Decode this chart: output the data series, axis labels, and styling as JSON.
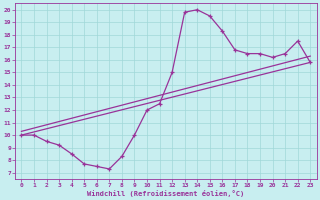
{
  "xlabel": "Windchill (Refroidissement éolien,°C)",
  "bg_color": "#c8eef0",
  "line_color": "#993399",
  "grid_color": "#a0d8d8",
  "xlim": [
    -0.5,
    23.5
  ],
  "ylim": [
    6.5,
    20.5
  ],
  "xticks": [
    0,
    1,
    2,
    3,
    4,
    5,
    6,
    7,
    8,
    9,
    10,
    11,
    12,
    13,
    14,
    15,
    16,
    17,
    18,
    19,
    20,
    21,
    22,
    23
  ],
  "yticks": [
    7,
    8,
    9,
    10,
    11,
    12,
    13,
    14,
    15,
    16,
    17,
    18,
    19,
    20
  ],
  "curve_x": [
    0,
    1,
    2,
    3,
    4,
    5,
    6,
    7,
    8,
    9,
    10,
    11,
    12,
    13,
    14,
    15,
    16,
    17,
    18,
    19,
    20,
    21,
    22,
    23
  ],
  "curve_y": [
    10.0,
    10.0,
    9.5,
    9.2,
    8.5,
    7.7,
    7.5,
    7.3,
    8.3,
    10.0,
    12.0,
    12.5,
    15.0,
    19.8,
    20.0,
    19.5,
    18.3,
    16.8,
    16.5,
    16.5,
    16.2,
    16.5,
    17.5,
    15.8
  ],
  "line1_x": [
    0,
    23
  ],
  "line1_y": [
    10.0,
    15.8
  ],
  "line2_x": [
    0,
    23
  ],
  "line2_y": [
    10.3,
    16.3
  ]
}
